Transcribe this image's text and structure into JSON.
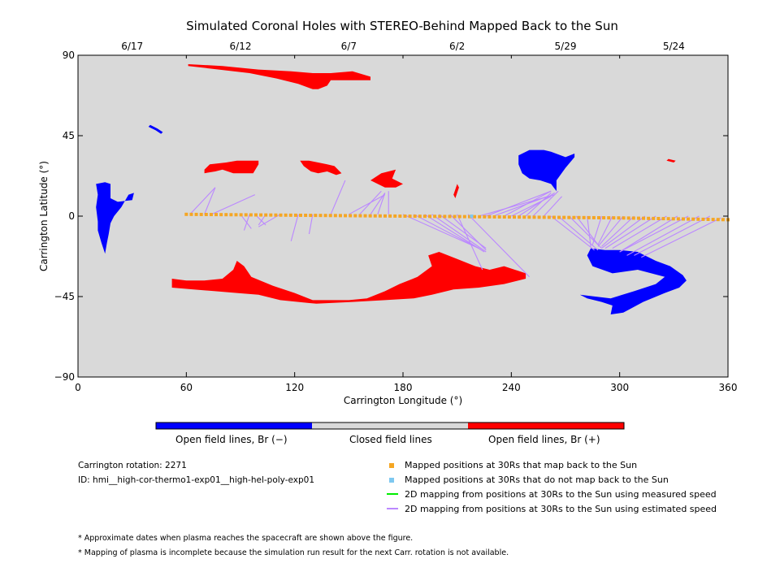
{
  "chart_data": {
    "type": "map",
    "title": "Simulated Coronal Holes with STEREO-Behind Mapped Back to the Sun",
    "xlabel": "Carrington Longitude (°)",
    "ylabel": "Carrington Latitude (°)",
    "xlim": [
      0,
      360
    ],
    "ylim": [
      -90,
      90
    ],
    "x_ticks": [
      0,
      60,
      120,
      180,
      240,
      300,
      360
    ],
    "y_ticks": [
      -90,
      -45,
      0,
      45,
      90
    ],
    "x_tick_labels": [
      "0",
      "60",
      "120",
      "180",
      "240",
      "300",
      "360"
    ],
    "y_tick_labels": [
      "−90",
      "−45",
      "0",
      "45",
      "90"
    ],
    "top_axis": {
      "ticks": [
        {
          "lon": 30,
          "label": "6/17"
        },
        {
          "lon": 90,
          "label": "6/12"
        },
        {
          "lon": 150,
          "label": "6/7"
        },
        {
          "lon": 210,
          "label": "6/2"
        },
        {
          "lon": 270,
          "label": "5/29"
        },
        {
          "lon": 330,
          "label": "5/24"
        }
      ]
    },
    "colors": {
      "background": "#d9d9d9",
      "negative": "#0000ff",
      "positive": "#ff0000",
      "mapped": "#f5a623",
      "unmapped": "#7ec8f0",
      "measured": "#00ee00",
      "estimated": "#bb88ff"
    },
    "coronal_holes": [
      {
        "polarity": "positive",
        "points": [
          [
            61,
            85
          ],
          [
            80,
            84
          ],
          [
            100,
            82
          ],
          [
            118,
            81
          ],
          [
            130,
            80
          ],
          [
            140,
            80
          ],
          [
            152,
            81
          ],
          [
            162,
            78
          ],
          [
            162,
            76
          ],
          [
            140,
            76
          ],
          [
            138,
            73
          ],
          [
            133,
            71
          ],
          [
            130,
            71
          ],
          [
            122,
            74
          ],
          [
            110,
            77
          ],
          [
            95,
            80
          ],
          [
            78,
            82
          ],
          [
            61,
            84
          ]
        ]
      },
      {
        "polarity": "positive",
        "points": [
          [
            70,
            24
          ],
          [
            76,
            25
          ],
          [
            80,
            26
          ],
          [
            86,
            24
          ],
          [
            97,
            24
          ],
          [
            100,
            29
          ],
          [
            100,
            31
          ],
          [
            88,
            31
          ],
          [
            82,
            30
          ],
          [
            73,
            29
          ],
          [
            70,
            26
          ]
        ]
      },
      {
        "polarity": "positive",
        "points": [
          [
            123,
            31
          ],
          [
            128,
            31
          ],
          [
            133,
            30
          ],
          [
            138,
            29
          ],
          [
            142,
            28
          ],
          [
            146,
            24
          ],
          [
            143,
            23
          ],
          [
            138,
            25
          ],
          [
            133,
            24
          ],
          [
            129,
            25
          ],
          [
            125,
            28
          ]
        ]
      },
      {
        "polarity": "positive",
        "points": [
          [
            162,
            20
          ],
          [
            168,
            24
          ],
          [
            176,
            26
          ],
          [
            174,
            21
          ],
          [
            180,
            18
          ],
          [
            176,
            16
          ],
          [
            170,
            16
          ]
        ]
      },
      {
        "polarity": "positive",
        "points": [
          [
            52,
            -35
          ],
          [
            60,
            -36
          ],
          [
            70,
            -36
          ],
          [
            80,
            -35
          ],
          [
            86,
            -30
          ],
          [
            88,
            -25
          ],
          [
            92,
            -28
          ],
          [
            96,
            -34
          ],
          [
            108,
            -39
          ],
          [
            120,
            -43
          ],
          [
            130,
            -47
          ],
          [
            140,
            -47
          ],
          [
            150,
            -47
          ],
          [
            160,
            -46
          ],
          [
            170,
            -42
          ],
          [
            178,
            -38
          ],
          [
            188,
            -34
          ],
          [
            196,
            -28
          ],
          [
            194,
            -22
          ],
          [
            200,
            -20
          ],
          [
            210,
            -24
          ],
          [
            220,
            -28
          ],
          [
            228,
            -30
          ],
          [
            236,
            -28
          ],
          [
            248,
            -32
          ],
          [
            248,
            -35
          ],
          [
            236,
            -38
          ],
          [
            222,
            -40
          ],
          [
            208,
            -41
          ],
          [
            196,
            -44
          ],
          [
            186,
            -46
          ],
          [
            170,
            -47
          ],
          [
            152,
            -48
          ],
          [
            132,
            -49
          ],
          [
            112,
            -47
          ],
          [
            100,
            -44
          ],
          [
            88,
            -43
          ],
          [
            76,
            -42
          ],
          [
            64,
            -41
          ],
          [
            52,
            -40
          ]
        ]
      },
      {
        "polarity": "positive",
        "points": [
          [
            327,
            32
          ],
          [
            331,
            31
          ],
          [
            330,
            30
          ],
          [
            326,
            31
          ]
        ]
      },
      {
        "polarity": "positive",
        "points": [
          [
            210,
            18
          ],
          [
            211,
            16
          ],
          [
            209,
            10
          ],
          [
            208,
            12
          ]
        ]
      },
      {
        "polarity": "negative",
        "points": [
          [
            10,
            18
          ],
          [
            15,
            19
          ],
          [
            18,
            18
          ],
          [
            18,
            10
          ],
          [
            22,
            8
          ],
          [
            30,
            9
          ],
          [
            31,
            13
          ],
          [
            28,
            12
          ],
          [
            24,
            5
          ],
          [
            20,
            0
          ],
          [
            18,
            -4
          ],
          [
            17,
            -10
          ],
          [
            16,
            -15
          ],
          [
            15,
            -21
          ],
          [
            13,
            -15
          ],
          [
            11,
            -8
          ],
          [
            11,
            -3
          ],
          [
            10,
            5
          ],
          [
            11,
            12
          ]
        ]
      },
      {
        "polarity": "negative",
        "points": [
          [
            244,
            34
          ],
          [
            250,
            37
          ],
          [
            258,
            37
          ],
          [
            262,
            36
          ],
          [
            270,
            33
          ],
          [
            275,
            35
          ],
          [
            275,
            33
          ],
          [
            270,
            27
          ],
          [
            265,
            20
          ],
          [
            265,
            14
          ],
          [
            262,
            18
          ],
          [
            256,
            20
          ],
          [
            250,
            21
          ],
          [
            246,
            24
          ],
          [
            244,
            29
          ]
        ]
      },
      {
        "polarity": "negative",
        "points": [
          [
            284,
            -18
          ],
          [
            292,
            -19
          ],
          [
            300,
            -19
          ],
          [
            310,
            -20
          ],
          [
            320,
            -25
          ],
          [
            328,
            -28
          ],
          [
            335,
            -33
          ],
          [
            337,
            -36
          ],
          [
            333,
            -40
          ],
          [
            325,
            -43
          ],
          [
            313,
            -48
          ],
          [
            302,
            -54
          ],
          [
            295,
            -55
          ],
          [
            296,
            -50
          ],
          [
            290,
            -48
          ],
          [
            282,
            -46
          ],
          [
            278,
            -44
          ],
          [
            295,
            -46
          ],
          [
            308,
            -42
          ],
          [
            320,
            -38
          ],
          [
            325,
            -34
          ],
          [
            310,
            -30
          ],
          [
            296,
            -32
          ],
          [
            285,
            -28
          ],
          [
            282,
            -22
          ]
        ]
      },
      {
        "polarity": "negative",
        "points": [
          [
            40,
            51
          ],
          [
            44,
            49
          ],
          [
            47,
            47
          ],
          [
            46,
            46
          ],
          [
            43,
            48
          ],
          [
            39,
            50
          ]
        ]
      }
    ],
    "mapping_sources": [
      {
        "x": 60,
        "y": 1
      },
      {
        "x": 300,
        "y": -1
      },
      {
        "x": 360,
        "y": -2
      }
    ],
    "mapped_points_count": 110,
    "unmapped_points": [
      {
        "x": 218,
        "y": 0
      }
    ],
    "estimated_lines": [
      [
        62,
        1,
        76,
        16
      ],
      [
        70,
        1,
        76,
        16
      ],
      [
        74,
        1,
        98,
        12
      ],
      [
        90,
        1,
        96,
        -7
      ],
      [
        95,
        1,
        92,
        -8
      ],
      [
        98,
        1,
        104,
        -5
      ],
      [
        104,
        1,
        100,
        -5
      ],
      [
        112,
        1,
        100,
        -6
      ],
      [
        122,
        1,
        118,
        -14
      ],
      [
        130,
        1,
        128,
        -10
      ],
      [
        140,
        1,
        148,
        20
      ],
      [
        150,
        1,
        170,
        12
      ],
      [
        156,
        1,
        168,
        14
      ],
      [
        162,
        1,
        170,
        13
      ],
      [
        166,
        1,
        170,
        13
      ],
      [
        172,
        1,
        172,
        14
      ],
      [
        180,
        1,
        222,
        -18
      ],
      [
        186,
        1,
        222,
        -18
      ],
      [
        192,
        1,
        225,
        -20
      ],
      [
        196,
        1,
        226,
        -20
      ],
      [
        200,
        1,
        226,
        -18
      ],
      [
        206,
        1,
        226,
        -19
      ],
      [
        210,
        1,
        224,
        -30
      ],
      [
        216,
        1,
        250,
        -34
      ],
      [
        222,
        0,
        264,
        12
      ],
      [
        226,
        0,
        262,
        14
      ],
      [
        230,
        0,
        260,
        11
      ],
      [
        236,
        0,
        262,
        14
      ],
      [
        240,
        0,
        262,
        11
      ],
      [
        244,
        0,
        264,
        13
      ],
      [
        248,
        0,
        262,
        13
      ],
      [
        252,
        0,
        266,
        14
      ],
      [
        258,
        0,
        268,
        11
      ],
      [
        262,
        0,
        286,
        -19
      ],
      [
        266,
        0,
        288,
        -19
      ],
      [
        272,
        0,
        290,
        -18
      ],
      [
        276,
        0,
        288,
        -16
      ],
      [
        282,
        0,
        284,
        -17
      ],
      [
        290,
        0,
        285,
        -16
      ],
      [
        296,
        0,
        288,
        -16
      ],
      [
        302,
        0,
        288,
        -17
      ],
      [
        308,
        0,
        290,
        -17
      ],
      [
        314,
        0,
        290,
        -18
      ],
      [
        320,
        0,
        292,
        -18
      ],
      [
        326,
        0,
        296,
        -18
      ],
      [
        332,
        0,
        300,
        -20
      ],
      [
        338,
        0,
        300,
        -20
      ],
      [
        344,
        0,
        304,
        -22
      ],
      [
        350,
        0,
        308,
        -22
      ],
      [
        356,
        -1,
        312,
        -23
      ]
    ],
    "colorbar": {
      "labels": [
        "Open field lines, Br (−)",
        "Closed field lines",
        "Open field lines, Br (+)"
      ]
    },
    "legend": [
      {
        "marker": "square",
        "color_key": "mapped",
        "label": "Mapped positions at 30Rs that map back to the Sun"
      },
      {
        "marker": "square",
        "color_key": "unmapped",
        "label": "Mapped positions at 30Rs that do not map back to the Sun"
      },
      {
        "marker": "line",
        "color_key": "measured",
        "label": "2D mapping from positions at 30Rs to the Sun using measured speed"
      },
      {
        "marker": "line",
        "color_key": "estimated",
        "label": "2D mapping from positions at 30Rs to the Sun using estimated speed"
      }
    ],
    "info": {
      "rotation": "Carrington rotation: 2271",
      "id": "ID: hmi__high-cor-thermo1-exp01__high-hel-poly-exp01"
    },
    "notes": [
      "* Approximate dates when plasma reaches the spacecraft are shown above the figure.",
      "* Mapping of plasma is incomplete because the simulation run result for the next Carr. rotation is not available."
    ]
  }
}
